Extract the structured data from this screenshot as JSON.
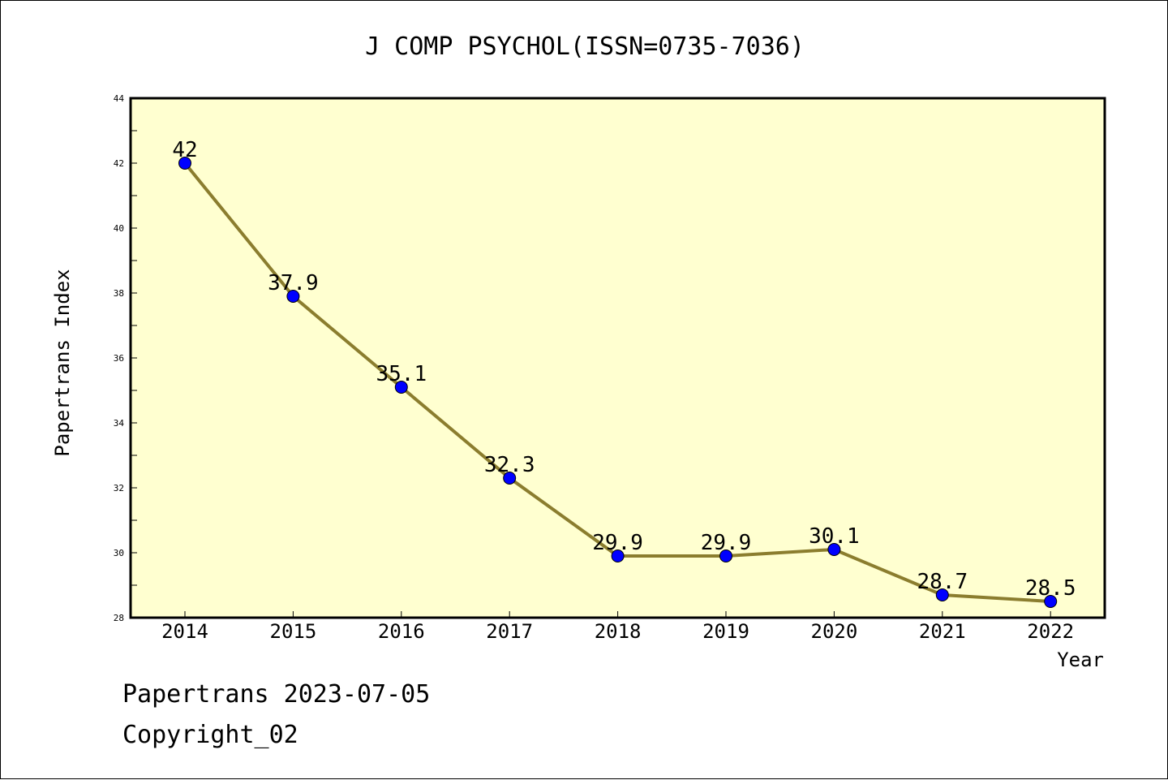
{
  "chart_data": {
    "type": "line",
    "title": "J COMP PSYCHOL(ISSN=0735-7036)",
    "xlabel": "Year",
    "ylabel": "Papertrans Index",
    "categories": [
      "2014",
      "2015",
      "2016",
      "2017",
      "2018",
      "2019",
      "2020",
      "2021",
      "2022"
    ],
    "series": [
      {
        "values": [
          42,
          37.9,
          35.1,
          32.3,
          29.9,
          29.9,
          30.1,
          28.7,
          28.5
        ],
        "labels": [
          "42",
          "37.9",
          "35.1",
          "32.3",
          "29.9",
          "29.9",
          "30.1",
          "28.7",
          "28.5"
        ]
      }
    ],
    "ylim": [
      28,
      44
    ],
    "yticks": [
      "28",
      "30",
      "32",
      "34",
      "36",
      "38",
      "40",
      "42",
      "44"
    ],
    "grid": false,
    "colors": {
      "plot_background": "#ffffd0",
      "line": "#8b7d2e",
      "marker": "#0000ff"
    }
  },
  "footer": {
    "line1": "Papertrans 2023-07-05",
    "line2": "Copyright_02"
  }
}
